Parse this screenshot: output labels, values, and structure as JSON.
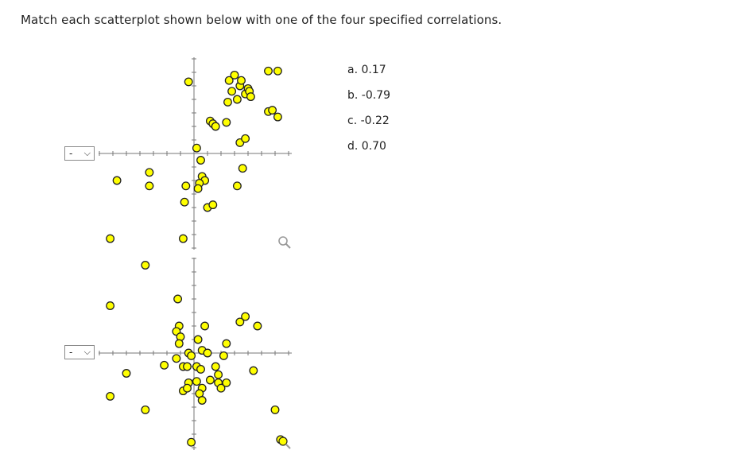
{
  "question": "Match each scatterplot shown below with one of the four specified correlations.",
  "plots": [
    {
      "dropdown_value": "-",
      "points": [
        [
          -0.2,
          10
        ],
        [
          0.9,
          9
        ],
        [
          1.1,
          8.5
        ],
        [
          1.4,
          8.8
        ],
        [
          1.9,
          8.7
        ],
        [
          2.0,
          9.3
        ],
        [
          0.9,
          7.7
        ],
        [
          1.1,
          7.6
        ],
        [
          0.9,
          7.2
        ],
        [
          1.0,
          7.1
        ],
        [
          1.9,
          7.2
        ],
        [
          2.2,
          6.3
        ],
        [
          2.4,
          5.9
        ],
        [
          2.7,
          3.6
        ],
        [
          2.4,
          2.6
        ],
        [
          0.3,
          4.4
        ],
        [
          0.3,
          5.5
        ],
        [
          2.0,
          3.9
        ],
        [
          1.3,
          3.1
        ],
        [
          1.1,
          2.9
        ],
        [
          1.8,
          3.6
        ],
        [
          0.3,
          3.3
        ],
        [
          0.1,
          2.1
        ],
        [
          -1.6,
          1.8
        ],
        [
          -1.3,
          2.3
        ],
        [
          -0.3,
          2.4
        ],
        [
          -0.2,
          2.1
        ],
        [
          -0.3,
          1.1
        ],
        [
          0.4,
          1.1
        ],
        [
          0.1,
          0.6
        ],
        [
          0.6,
          0.5
        ],
        [
          -1.4,
          -0.3
        ],
        [
          -1.3,
          -0.6
        ],
        [
          -1.6,
          -1.5
        ],
        [
          -2.4,
          -1.3
        ],
        [
          -0.4,
          -1.8
        ],
        [
          -0.3,
          -1.4
        ],
        [
          -0.3,
          -2.1
        ],
        [
          0.5,
          -2.5
        ],
        [
          0.7,
          -2.3
        ],
        [
          -0.4,
          -3.4
        ],
        [
          0.3,
          -2.2
        ],
        [
          -0.3,
          -2.1
        ],
        [
          -1.0,
          -3.7
        ],
        [
          1.7,
          -0.5
        ],
        [
          -2.6,
          -4.3
        ],
        [
          -0.4,
          -4.0
        ],
        [
          0.5,
          -2.7
        ]
      ]
    },
    {
      "dropdown_value": "-",
      "points": []
    }
  ],
  "options": [
    "a. 0.17",
    "b. -0.79",
    "c. -0.22",
    "d. 0.70"
  ],
  "icons": {
    "dropdown": "chevron-down-icon",
    "zoom": "magnifier-icon"
  },
  "colors": {
    "point_fill": "#ffff00",
    "point_stroke": "#222222",
    "axis": "#777777"
  }
}
